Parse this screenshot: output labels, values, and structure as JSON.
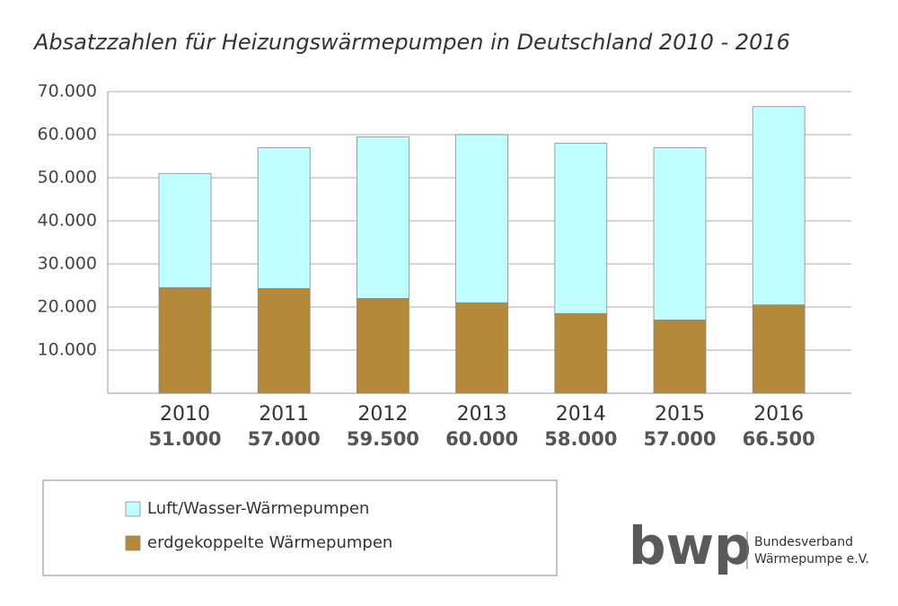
{
  "chart_data": {
    "type": "bar",
    "stacked": true,
    "title": "Absatzzahlen für Heizungswärmepumpen in Deutschland 2010 - 2016",
    "categories": [
      "2010",
      "2011",
      "2012",
      "2013",
      "2014",
      "2015",
      "2016"
    ],
    "series": [
      {
        "name": "erdgekoppelte Wärmepumpen",
        "color": "#b5893a",
        "values": [
          24500,
          24300,
          22000,
          21000,
          18500,
          17000,
          20500
        ]
      },
      {
        "name": "Luft/Wasser-Wärmepumpen",
        "color": "#bfffff",
        "values": [
          26500,
          32700,
          37500,
          39000,
          39500,
          40000,
          46000
        ]
      }
    ],
    "totals": [
      {
        "value": 51000,
        "label": "51.000"
      },
      {
        "value": 57000,
        "label": "57.000"
      },
      {
        "value": 59500,
        "label": "59.500"
      },
      {
        "value": 60000,
        "label": "60.000"
      },
      {
        "value": 58000,
        "label": "58.000"
      },
      {
        "value": 57000,
        "label": "57.000"
      },
      {
        "value": 66500,
        "label": "66.500"
      }
    ],
    "ylim": [
      0,
      70000
    ],
    "yticks": [
      {
        "value": 10000,
        "label": "10.000"
      },
      {
        "value": 20000,
        "label": "20.000"
      },
      {
        "value": 30000,
        "label": "30.000"
      },
      {
        "value": 40000,
        "label": "40.000"
      },
      {
        "value": 50000,
        "label": "50.000"
      },
      {
        "value": 60000,
        "label": "60.000"
      },
      {
        "value": 70000,
        "label": "70.000"
      }
    ],
    "grid": true
  },
  "logo": {
    "mark": "bwp",
    "line1": "Bundesverband",
    "line2": "Wärmepumpe e.V."
  }
}
